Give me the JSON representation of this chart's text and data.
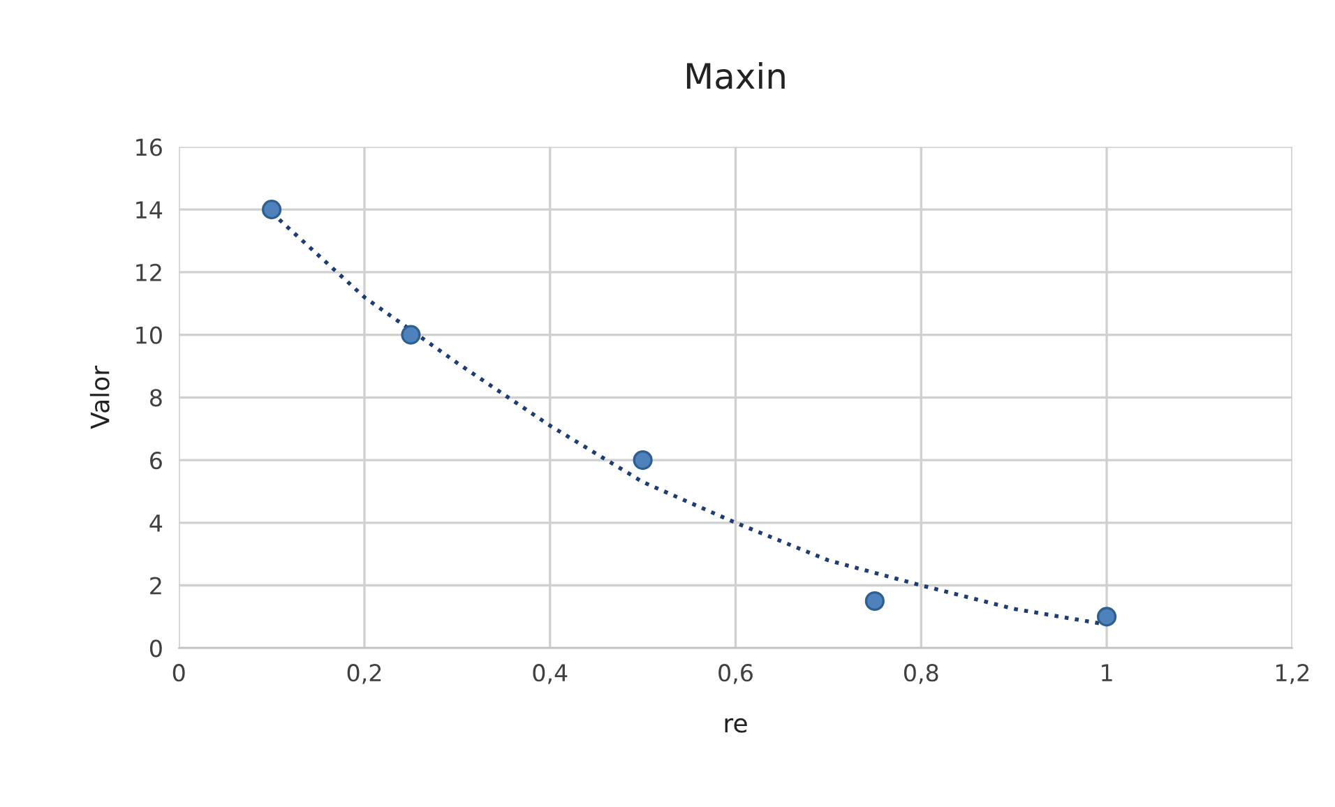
{
  "chart_data": {
    "type": "scatter",
    "title": "Maxin",
    "xlabel": "re",
    "ylabel": "Valor",
    "series": [
      {
        "color": "#4f81bd",
        "marker": "circle",
        "x": [
          0.1,
          0.25,
          0.5,
          0.75,
          1
        ],
        "values": [
          14,
          10,
          6,
          1.5,
          1
        ]
      },
      {
        "type": "line",
        "color": "#1f3d73",
        "line_style": "dotted",
        "marker": "none",
        "x": [
          0.1,
          0.2,
          0.3,
          0.4,
          0.5,
          0.6,
          0.7,
          0.8,
          0.9,
          1.0
        ],
        "values": [
          13.9,
          11.2,
          9.1,
          7.1,
          5.3,
          4.0,
          2.8,
          2.0,
          1.25,
          0.75
        ]
      }
    ],
    "xlim": [
      0,
      1.2
    ],
    "xticks": [
      0,
      {
        "value": 0.2,
        "label": "0,2"
      },
      {
        "value": 0.4,
        "label": "0,4"
      },
      {
        "value": 0.6,
        "label": "0,6"
      },
      {
        "value": 0.8,
        "label": "0,8"
      },
      1,
      {
        "value": 1.2,
        "label": "1,2"
      }
    ],
    "ylim": [
      0,
      16
    ],
    "yticks": [
      0,
      2,
      4,
      6,
      8,
      10,
      12,
      14,
      16
    ],
    "grid": true,
    "legend": false
  }
}
